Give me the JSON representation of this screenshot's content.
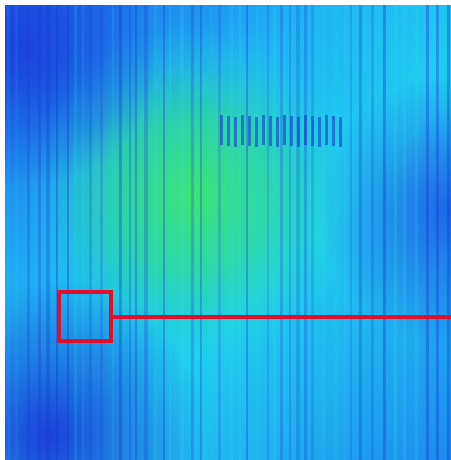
{
  "image": {
    "description_free": true,
    "colormap": [
      "#1a2fd8",
      "#1e6bf0",
      "#1fb0f2",
      "#21d6ee",
      "#2fe0b8",
      "#38e07a"
    ],
    "highlight_color": "#e0102a",
    "line_orientation": "vertical"
  },
  "overlay": {
    "marker": "roi-box",
    "leader": "horizontal-line-to-right-edge"
  }
}
